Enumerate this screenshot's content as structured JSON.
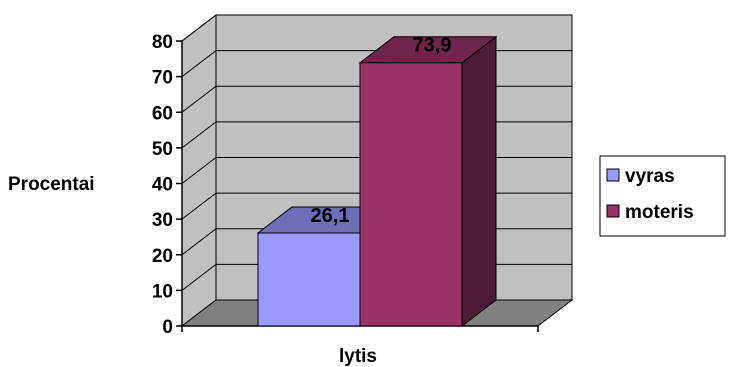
{
  "chart_data": {
    "type": "bar",
    "title": "",
    "xlabel": "lytis",
    "ylabel": "Procentai",
    "ylim": [
      0,
      80
    ],
    "yticks": [
      0,
      10,
      20,
      30,
      40,
      50,
      60,
      70,
      80
    ],
    "grid": true,
    "three_d": true,
    "legend": "right",
    "series": [
      {
        "name": "vyras",
        "value": 26.1,
        "label": "26,1",
        "color": "#9999FF"
      },
      {
        "name": "moteris",
        "value": 73.9,
        "label": "73,9",
        "color": "#993366"
      }
    ]
  }
}
